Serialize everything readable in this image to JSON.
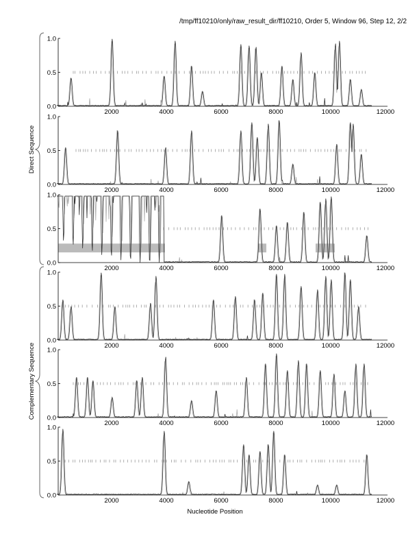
{
  "chart_data": {
    "type": "line",
    "title": "/tmp/ff10210/only/raw_result_dir/ff10210, Order 5, Window 96, Step 12, 2/2",
    "xlabel": "Nucleotide Position",
    "group_labels": [
      "Direct Sequence",
      "Complementary Sequence"
    ],
    "xlim": [
      0,
      12000
    ],
    "ylim": [
      0,
      1
    ],
    "xticks": [
      "2000",
      "4000",
      "6000",
      "8000",
      "10000",
      "12000"
    ],
    "yticks": [
      "0.0",
      "0.5",
      "1.0"
    ],
    "panels": [
      {
        "group": "Direct Sequence",
        "dash_range": [
          600,
          11400
        ],
        "peaks": [
          [
            500,
            0.42
          ],
          [
            2000,
            1.0
          ],
          [
            3900,
            0.45
          ],
          [
            4300,
            0.97
          ],
          [
            4900,
            0.6
          ],
          [
            5300,
            0.22
          ],
          [
            6700,
            0.92
          ],
          [
            7000,
            0.9
          ],
          [
            7250,
            0.88
          ],
          [
            7450,
            0.5
          ],
          [
            8200,
            0.6
          ],
          [
            8600,
            0.4
          ],
          [
            8900,
            0.8
          ],
          [
            9400,
            0.5
          ],
          [
            10150,
            0.93
          ],
          [
            10300,
            0.97
          ],
          [
            10700,
            0.4
          ],
          [
            11100,
            0.25
          ]
        ],
        "high_region": null,
        "bars": []
      },
      {
        "group": "Direct Sequence",
        "dash_range": [
          700,
          11400
        ],
        "peaks": [
          [
            300,
            0.55
          ],
          [
            2200,
            0.8
          ],
          [
            3950,
            0.55
          ],
          [
            4900,
            0.8
          ],
          [
            6700,
            0.8
          ],
          [
            7100,
            0.92
          ],
          [
            7300,
            0.7
          ],
          [
            7700,
            0.9
          ],
          [
            8100,
            0.95
          ],
          [
            8600,
            0.3
          ],
          [
            10200,
            0.6
          ],
          [
            10700,
            0.92
          ],
          [
            10800,
            0.9
          ],
          [
            11100,
            0.45
          ]
        ],
        "high_region": null,
        "bars": []
      },
      {
        "group": "Direct Sequence",
        "dash_range": [
          3900,
          11400
        ],
        "peaks": [
          [
            6000,
            0.7
          ],
          [
            7400,
            0.8
          ],
          [
            8000,
            0.55
          ],
          [
            8400,
            0.6
          ],
          [
            9000,
            0.75
          ],
          [
            9600,
            0.9
          ],
          [
            9800,
            0.95
          ],
          [
            10000,
            0.98
          ],
          [
            11300,
            0.4
          ]
        ],
        "high_region": [
          0,
          3900
        ],
        "bars": [
          [
            0,
            3900
          ],
          [
            7300,
            7600
          ],
          [
            9400,
            10100
          ]
        ]
      },
      {
        "group": "Complementary Sequence",
        "dash_range": [
          200,
          11300
        ],
        "peaks": [
          [
            200,
            0.6
          ],
          [
            500,
            0.5
          ],
          [
            1600,
            1.0
          ],
          [
            2100,
            0.5
          ],
          [
            3400,
            0.55
          ],
          [
            3600,
            0.95
          ],
          [
            5700,
            0.6
          ],
          [
            6500,
            0.65
          ],
          [
            7200,
            0.6
          ],
          [
            7500,
            0.7
          ],
          [
            8000,
            0.98
          ],
          [
            8300,
            0.98
          ],
          [
            8900,
            0.8
          ],
          [
            9500,
            0.75
          ],
          [
            9800,
            0.95
          ],
          [
            10000,
            0.9
          ],
          [
            10500,
            1.0
          ],
          [
            10700,
            0.9
          ],
          [
            11000,
            0.5
          ]
        ],
        "high_region": null,
        "bars": []
      },
      {
        "group": "Complementary Sequence",
        "dash_range": [
          600,
          11400
        ],
        "peaks": [
          [
            700,
            0.6
          ],
          [
            1100,
            0.6
          ],
          [
            1300,
            0.55
          ],
          [
            2000,
            0.3
          ],
          [
            2900,
            0.55
          ],
          [
            3100,
            0.6
          ],
          [
            3950,
            0.9
          ],
          [
            4900,
            0.25
          ],
          [
            5800,
            0.4
          ],
          [
            6900,
            0.6
          ],
          [
            7600,
            0.8
          ],
          [
            8000,
            0.95
          ],
          [
            8400,
            0.7
          ],
          [
            8800,
            0.85
          ],
          [
            9100,
            0.8
          ],
          [
            9600,
            0.7
          ],
          [
            10100,
            0.65
          ],
          [
            10500,
            0.4
          ],
          [
            10900,
            0.8
          ],
          [
            11200,
            0.8
          ]
        ],
        "high_region": null,
        "bars": []
      },
      {
        "group": "Complementary Sequence",
        "dash_range": [
          300,
          11400
        ],
        "peaks": [
          [
            200,
            0.98
          ],
          [
            3900,
            0.95
          ],
          [
            4800,
            0.2
          ],
          [
            6800,
            0.75
          ],
          [
            7000,
            0.6
          ],
          [
            7400,
            0.65
          ],
          [
            7700,
            0.75
          ],
          [
            7900,
            0.95
          ],
          [
            8300,
            0.6
          ],
          [
            9500,
            0.15
          ],
          [
            10200,
            0.15
          ],
          [
            11300,
            0.6
          ]
        ],
        "high_region": null,
        "bars": []
      }
    ]
  }
}
